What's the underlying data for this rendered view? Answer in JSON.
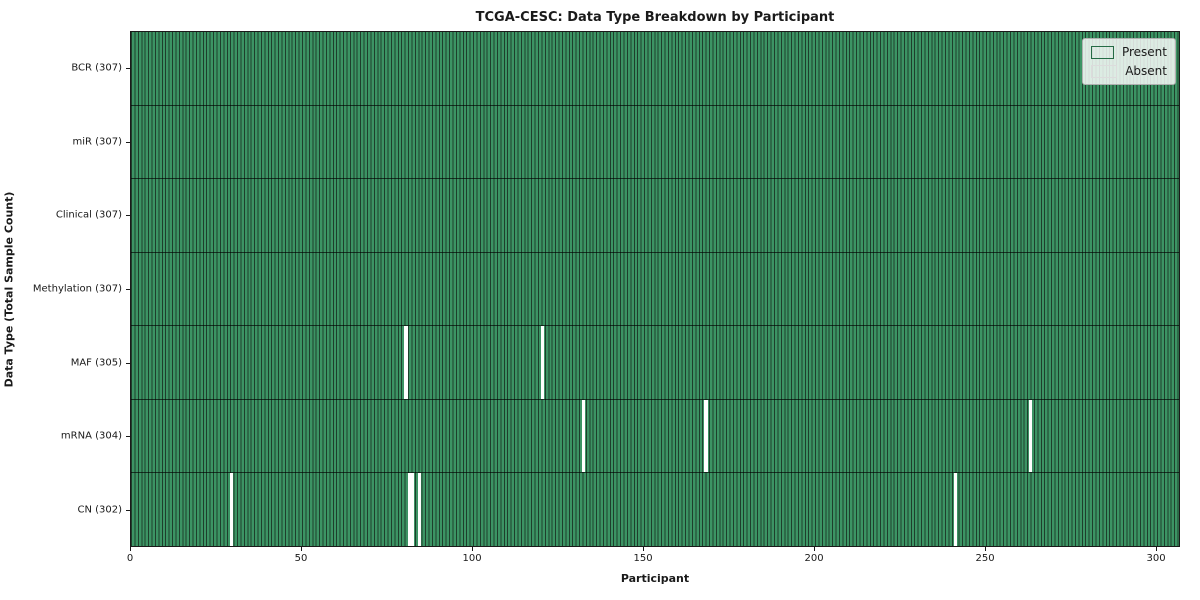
{
  "figure": {
    "title": "TCGA-CESC: Data Type Breakdown by Participant",
    "xlabel": "Participant",
    "ylabel": "Data Type (Total Sample Count)"
  },
  "legend": {
    "present_label": "Present",
    "absent_label": "Absent"
  },
  "colors": {
    "present_fill": "#3c9464",
    "cell_edge": "#1e3f2c",
    "absent_fill": "#ffffff",
    "axis_text": "#1a1a1a"
  },
  "chart_data": {
    "type": "heatmap",
    "title": "TCGA-CESC: Data Type Breakdown by Participant",
    "xlabel": "Participant",
    "ylabel": "Data Type (Total Sample Count)",
    "legend_entries": [
      "Present",
      "Absent"
    ],
    "legend_position": "upper right",
    "grid": false,
    "n_participants": 307,
    "x_ticks": [
      0,
      50,
      100,
      150,
      200,
      250,
      300
    ],
    "xlim": [
      0,
      307
    ],
    "rows": [
      {
        "label": "BCR (307)",
        "data_type": "BCR",
        "present_count": 307,
        "absent_participants": []
      },
      {
        "label": "miR (307)",
        "data_type": "miR",
        "present_count": 307,
        "absent_participants": []
      },
      {
        "label": "Clinical (307)",
        "data_type": "Clinical",
        "present_count": 307,
        "absent_participants": []
      },
      {
        "label": "Methylation (307)",
        "data_type": "Methylation",
        "present_count": 307,
        "absent_participants": []
      },
      {
        "label": "MAF (305)",
        "data_type": "MAF",
        "present_count": 305,
        "absent_participants": [
          80,
          120
        ]
      },
      {
        "label": "mRNA (304)",
        "data_type": "mRNA",
        "present_count": 304,
        "absent_participants": [
          132,
          168,
          263
        ]
      },
      {
        "label": "CN (302)",
        "data_type": "CN",
        "present_count": 302,
        "absent_participants": [
          29,
          81,
          82,
          84,
          241
        ]
      }
    ]
  }
}
